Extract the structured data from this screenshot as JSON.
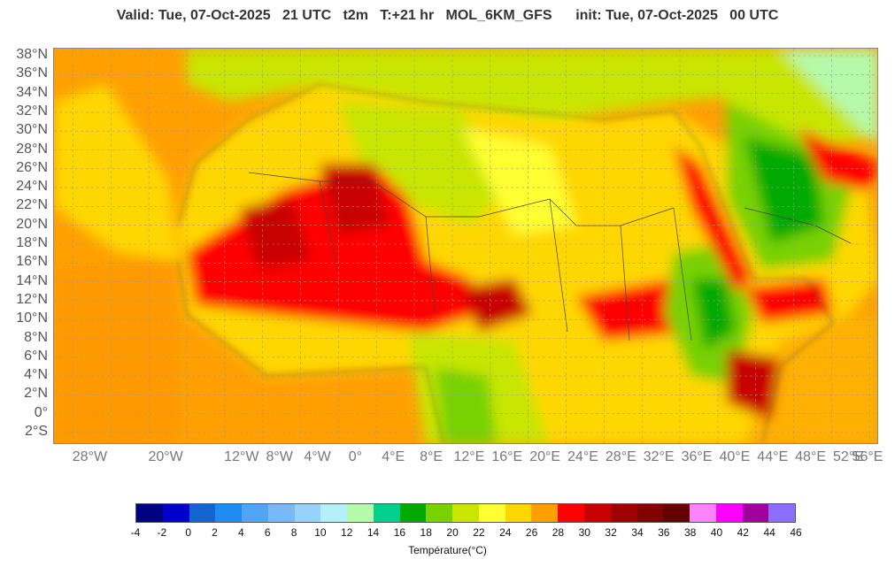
{
  "header": {
    "title": "Valid: Tue, 07-Oct-2025   21 UTC   t2m   T:+21 hr   MOL_6KM_GFS      init: Tue, 07-Oct-2025   00 UTC"
  },
  "map": {
    "variable": "t2m",
    "model": "MOL_6KM_GFS",
    "lat_labels": [
      "38°N",
      "36°N",
      "34°N",
      "32°N",
      "30°N",
      "28°N",
      "26°N",
      "24°N",
      "22°N",
      "20°N",
      "18°N",
      "16°N",
      "14°N",
      "12°N",
      "10°N",
      "8°N",
      "6°N",
      "4°N",
      "2°N",
      "0°",
      "2°S"
    ],
    "lon_labels": [
      "28°W",
      "20°W",
      "12°W",
      "8°W",
      "4°W",
      "0°",
      "4°E",
      "8°E",
      "12°E",
      "16°E",
      "20°E",
      "24°E",
      "28°E",
      "32°E",
      "36°E",
      "40°E",
      "44°E",
      "48°E",
      "52°E",
      "56°E"
    ],
    "background_color": "#ff9900"
  },
  "legend": {
    "title": "Température(°C)",
    "ticks": [
      "-4",
      "-2",
      "0",
      "2",
      "4",
      "6",
      "8",
      "10",
      "12",
      "14",
      "16",
      "18",
      "20",
      "22",
      "24",
      "26",
      "28",
      "30",
      "32",
      "34",
      "36",
      "38",
      "40",
      "42",
      "44",
      "46"
    ],
    "colors": [
      "#000080",
      "#0000cd",
      "#1464d2",
      "#1e8cf0",
      "#50a5f5",
      "#78b9fa",
      "#96d2fa",
      "#b4f0fa",
      "#b4faaa",
      "#00d08c",
      "#00aa00",
      "#78d200",
      "#c8e600",
      "#ffff32",
      "#ffd700",
      "#ffa000",
      "#ff0000",
      "#c80000",
      "#a00000",
      "#820000",
      "#640000",
      "#ff82ff",
      "#ff00ff",
      "#a000a0",
      "#8c6eff"
    ]
  }
}
